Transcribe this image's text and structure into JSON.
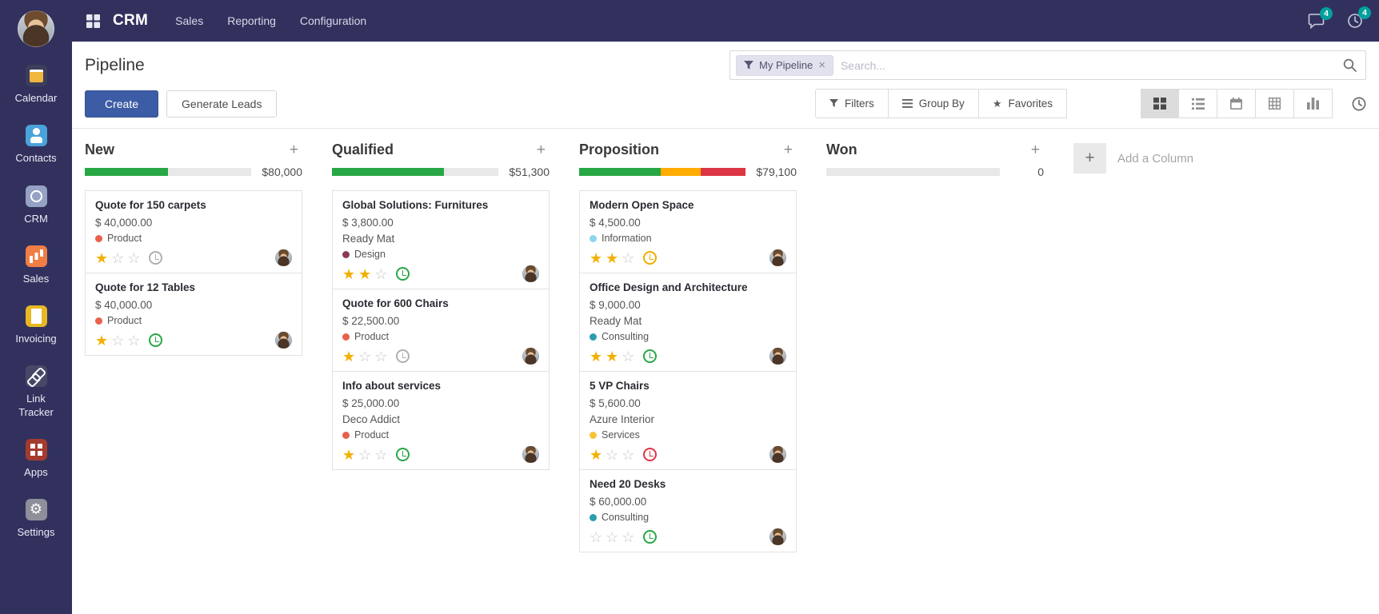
{
  "app": {
    "brand": "CRM",
    "menus": [
      {
        "label": "Sales"
      },
      {
        "label": "Reporting"
      },
      {
        "label": "Configuration"
      }
    ],
    "messages_badge": "4",
    "activities_badge": "4"
  },
  "sidebar": {
    "items": [
      {
        "label": "Calendar",
        "icon": "calendar-icon"
      },
      {
        "label": "Contacts",
        "icon": "contacts-icon"
      },
      {
        "label": "CRM",
        "icon": "crm-icon"
      },
      {
        "label": "Sales",
        "icon": "sales-icon"
      },
      {
        "label": "Invoicing",
        "icon": "invoicing-icon"
      },
      {
        "label": "Link Tracker",
        "icon": "link-tracker-icon"
      },
      {
        "label": "Apps",
        "icon": "apps-icon"
      },
      {
        "label": "Settings",
        "icon": "settings-icon"
      }
    ]
  },
  "control_panel": {
    "title": "Pipeline",
    "create_label": "Create",
    "generate_leads_label": "Generate Leads",
    "search": {
      "facet_label": "My Pipeline",
      "placeholder": "Search..."
    },
    "filters_label": "Filters",
    "group_by_label": "Group By",
    "favorites_label": "Favorites"
  },
  "board": {
    "add_column_label": "Add a Column",
    "columns": [
      {
        "name": "New",
        "amount": "$80,000",
        "progress": [
          {
            "color": "#28a745",
            "pct": 50
          }
        ],
        "cards": [
          {
            "title": "Quote for 150 carpets",
            "amount": "$ 40,000.00",
            "partner": "",
            "tag": {
              "label": "Product",
              "color": "#e8604c"
            },
            "stars": 1,
            "activity_color": "#b0b0b0"
          },
          {
            "title": "Quote for 12 Tables",
            "amount": "$ 40,000.00",
            "partner": "",
            "tag": {
              "label": "Product",
              "color": "#e8604c"
            },
            "stars": 1,
            "activity_color": "#28a745"
          }
        ]
      },
      {
        "name": "Qualified",
        "amount": "$51,300",
        "progress": [
          {
            "color": "#28a745",
            "pct": 67
          }
        ],
        "cards": [
          {
            "title": "Global Solutions: Furnitures",
            "amount": "$ 3,800.00",
            "partner": "Ready Mat",
            "tag": {
              "label": "Design",
              "color": "#8a3a52"
            },
            "stars": 2,
            "activity_color": "#28a745"
          },
          {
            "title": "Quote for 600 Chairs",
            "amount": "$ 22,500.00",
            "partner": "",
            "tag": {
              "label": "Product",
              "color": "#e8604c"
            },
            "stars": 1,
            "activity_color": "#b0b0b0"
          },
          {
            "title": "Info about services",
            "amount": "$ 25,000.00",
            "partner": "Deco Addict",
            "tag": {
              "label": "Product",
              "color": "#e8604c"
            },
            "stars": 1,
            "activity_color": "#28a745"
          }
        ]
      },
      {
        "name": "Proposition",
        "amount": "$79,100",
        "progress": [
          {
            "color": "#28a745",
            "pct": 49
          },
          {
            "color": "#ffac00",
            "pct": 24
          },
          {
            "color": "#dc3545",
            "pct": 27
          }
        ],
        "cards": [
          {
            "title": "Modern Open Space",
            "amount": "$ 4,500.00",
            "partner": "",
            "tag": {
              "label": "Information",
              "color": "#8bd5ee"
            },
            "stars": 2,
            "activity_color": "#f0ad00"
          },
          {
            "title": "Office Design and Architecture",
            "amount": "$ 9,000.00",
            "partner": "Ready Mat",
            "tag": {
              "label": "Consulting",
              "color": "#2a9db0"
            },
            "stars": 2,
            "activity_color": "#28a745"
          },
          {
            "title": "5 VP Chairs",
            "amount": "$ 5,600.00",
            "partner": "Azure Interior",
            "tag": {
              "label": "Services",
              "color": "#f5c538"
            },
            "stars": 1,
            "activity_color": "#dc3545"
          },
          {
            "title": "Need 20 Desks",
            "amount": "$ 60,000.00",
            "partner": "",
            "tag": {
              "label": "Consulting",
              "color": "#2a9db0"
            },
            "stars": 0,
            "activity_color": "#28a745"
          }
        ]
      },
      {
        "name": "Won",
        "amount": "0",
        "progress": [],
        "cards": []
      }
    ]
  }
}
